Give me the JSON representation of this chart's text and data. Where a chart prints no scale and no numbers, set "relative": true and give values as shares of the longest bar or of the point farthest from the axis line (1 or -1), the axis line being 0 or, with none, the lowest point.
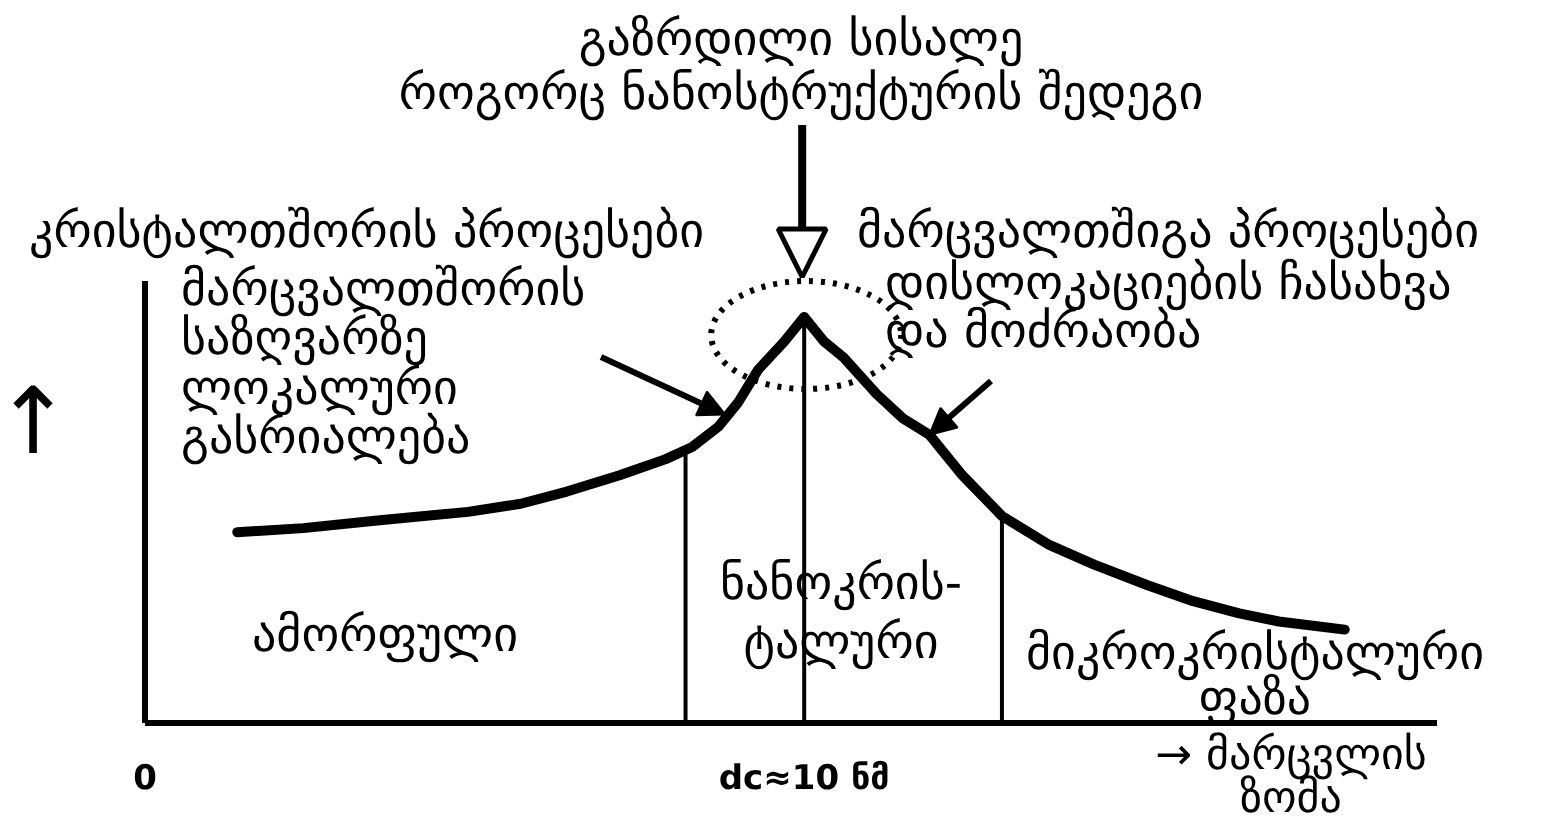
{
  "chart_data": {
    "type": "line",
    "relative": true,
    "x": [
      1.4,
      2.4,
      3.6,
      4.9,
      5.7,
      6.4,
      7.2,
      7.9,
      8.3,
      8.7,
      9.0,
      9.3,
      9.7,
      10,
      10.3,
      10.6,
      11.1,
      11.5,
      11.9,
      12.4,
      13.0,
      13.7,
      14.4,
      15.2,
      15.9,
      16.6,
      17.2,
      18.2
    ],
    "series": [
      {
        "color": "#000000",
        "values": [
          0.47,
          0.48,
          0.5,
          0.52,
          0.54,
          0.57,
          0.61,
          0.65,
          0.68,
          0.73,
          0.79,
          0.87,
          0.94,
          1,
          0.94,
          0.9,
          0.81,
          0.75,
          0.71,
          0.61,
          0.51,
          0.44,
          0.39,
          0.34,
          0.3,
          0.27,
          0.25,
          0.23
        ]
      }
    ],
    "xlim": [
      0,
      19.6
    ],
    "xticks": [
      0,
      {
        "value": 10,
        "label": "dc≈10 ნმ"
      }
    ],
    "xlabel": "→ მარცვლის\nზომა",
    "ylabel": "↑",
    "tick_labels": "x",
    "grid": false,
    "ref_lines": [
      {
        "axis": "x",
        "value": 8.2
      },
      {
        "axis": "x",
        "value": 10
      },
      {
        "axis": "x",
        "value": 13
      }
    ],
    "annotations": [
      "გაზრდილი სისალე\nროგორც ნანოსტრუქტურის შედეგი",
      "კრისტალთშორის პროცესები",
      {
        "text": "მარცვალთშორის\nსაზღვარზე\nლოკალური\nგასრიალება",
        "x": 8.8,
        "y": 0.76
      },
      "მარცვალთშიგა პროცესები",
      {
        "text": "დისლოკაციების ჩასახვა\nდა მოძრაობა",
        "x": 11.9,
        "y": 0.71
      },
      "ამორფული",
      "ნანოკრის-\nტალური",
      "მიკროკრისტალური\nფაზა"
    ]
  }
}
